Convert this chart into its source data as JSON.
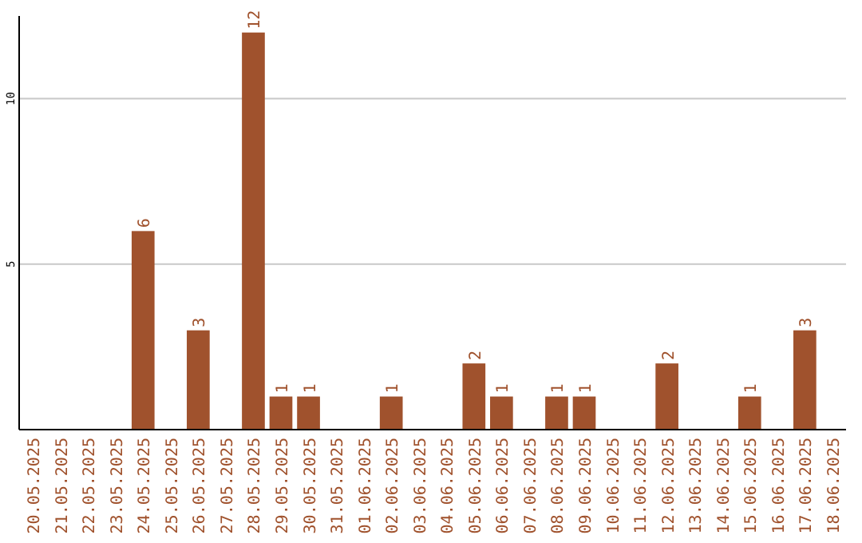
{
  "chart_data": {
    "type": "bar",
    "categories": [
      "20.05.2025",
      "21.05.2025",
      "22.05.2025",
      "23.05.2025",
      "24.05.2025",
      "25.05.2025",
      "26.05.2025",
      "27.05.2025",
      "28.05.2025",
      "29.05.2025",
      "30.05.2025",
      "31.05.2025",
      "01.06.2025",
      "02.06.2025",
      "03.06.2025",
      "04.06.2025",
      "05.06.2025",
      "06.06.2025",
      "07.06.2025",
      "08.06.2025",
      "09.06.2025",
      "10.06.2025",
      "11.06.2025",
      "12.06.2025",
      "13.06.2025",
      "14.06.2025",
      "15.06.2025",
      "16.06.2025",
      "17.06.2025",
      "18.06.2025"
    ],
    "values": [
      0,
      0,
      0,
      0,
      6,
      0,
      3,
      0,
      12,
      1,
      1,
      0,
      0,
      1,
      0,
      0,
      2,
      1,
      0,
      1,
      1,
      0,
      0,
      2,
      0,
      0,
      1,
      0,
      3,
      0
    ],
    "value_labels": [
      null,
      null,
      null,
      null,
      "6",
      null,
      "3",
      null,
      "12",
      "1",
      "1",
      null,
      null,
      "1",
      null,
      null,
      "2",
      "1",
      null,
      "1",
      "1",
      null,
      null,
      "2",
      null,
      null,
      "1",
      null,
      "3",
      null
    ],
    "color": "#a0522d",
    "ylim": [
      0,
      12.5
    ],
    "yticks": [
      5,
      10
    ],
    "grid": "y"
  }
}
